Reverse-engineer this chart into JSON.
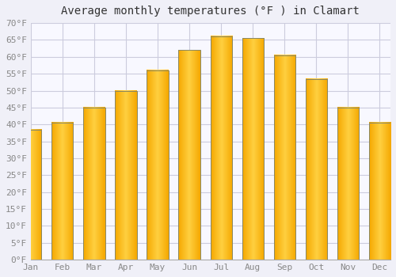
{
  "title": "Average monthly temperatures (°F ) in Clamart",
  "months": [
    "Jan",
    "Feb",
    "Mar",
    "Apr",
    "May",
    "Jun",
    "Jul",
    "Aug",
    "Sep",
    "Oct",
    "Nov",
    "Dec"
  ],
  "values": [
    38.5,
    40.5,
    45,
    50,
    56,
    62,
    66,
    65.5,
    60.5,
    53.5,
    45,
    40.5
  ],
  "bar_color_edge": "#F5A800",
  "bar_color_center": "#FFD040",
  "bar_border_color": "#888866",
  "ylim": [
    0,
    70
  ],
  "background_color": "#F0F0F8",
  "plot_bg_color": "#F8F8FF",
  "grid_color": "#CCCCDD",
  "title_fontsize": 10,
  "tick_fontsize": 8,
  "font_family": "monospace",
  "tick_color": "#888888",
  "title_color": "#333333"
}
